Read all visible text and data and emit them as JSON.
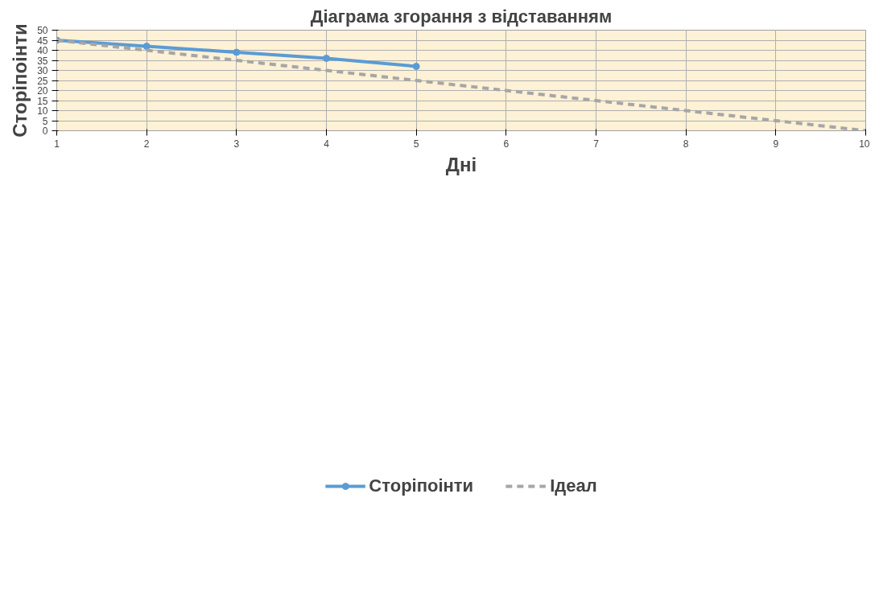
{
  "chart_data": {
    "type": "line",
    "title": "Діаграма згорання з відставанням",
    "xlabel": "Дні",
    "ylabel": "Сторіпоінти",
    "x": [
      1,
      2,
      3,
      4,
      5,
      6,
      7,
      8,
      9,
      10
    ],
    "series": [
      {
        "name": "Сторіпоінти",
        "color": "#5b9bd5",
        "values": [
          45,
          42,
          39,
          36,
          32,
          null,
          null,
          null,
          null,
          null
        ],
        "marker": "circle",
        "line_style": "solid"
      },
      {
        "name": "Ідеал",
        "color": "#a6a6a6",
        "values": [
          45,
          40,
          35,
          30,
          25,
          20,
          15,
          10,
          5,
          0
        ],
        "marker": "none",
        "line_style": "dashed"
      }
    ],
    "xlim": [
      1,
      10
    ],
    "xticks": [
      1,
      2,
      3,
      4,
      5,
      6,
      7,
      8,
      9,
      10
    ],
    "ylim": [
      0,
      50
    ],
    "yticks": [
      0,
      5,
      10,
      15,
      20,
      25,
      30,
      35,
      40,
      45,
      50
    ],
    "grid": true,
    "legend": "bottom"
  }
}
